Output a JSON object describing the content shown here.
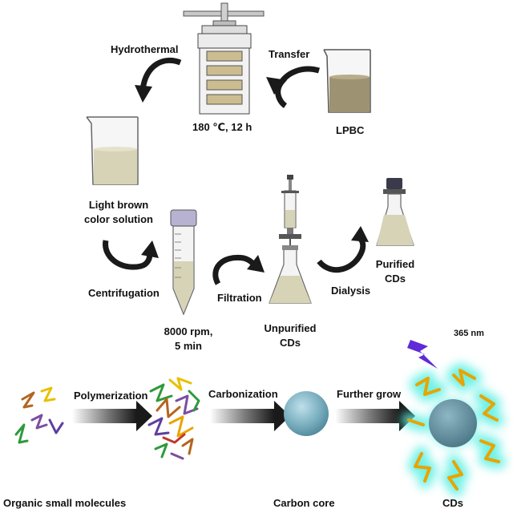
{
  "labels": {
    "hydrothermal": "Hydrothermal",
    "transfer": "Transfer",
    "condition": "180 ℃, 12 h",
    "lpbc": "LPBC",
    "light_brown_1": "Light brown",
    "light_brown_2": "color solution",
    "centrifugation": "Centrifugation",
    "rpm_1": "8000 rpm,",
    "rpm_2": "5 min",
    "filtration": "Filtration",
    "unpurified_1": "Unpurified",
    "unpurified_2": "CDs",
    "dialysis": "Dialysis",
    "purified_1": "Purified",
    "purified_2": "CDs",
    "polymerization": "Polymerization",
    "carbonization": "Carbonization",
    "further_grow": "Further grow",
    "uv": "365 nm",
    "organic": "Organic small molecules",
    "carbon_core": "Carbon core",
    "cds": "CDs"
  },
  "colors": {
    "solution": "#d7d3b6",
    "lpbc_liquid": "#9d9272",
    "reactor_band": "#cbbd8f",
    "arrow_dark": "#1a1a1a",
    "core": "#7aa9b8",
    "glow": "#66f0e6",
    "chain_orange": "#e8a400",
    "lightning": "#5e2bd6"
  }
}
